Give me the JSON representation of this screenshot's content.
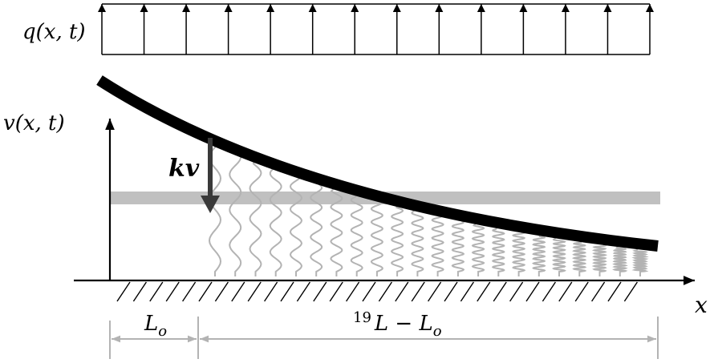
{
  "labels": {
    "load": "q(x, t)",
    "deflection": "v(x, t)",
    "spring_force": "kv",
    "x_axis": "x",
    "length_left": "L",
    "length_left_sub": "o",
    "length_right_sup": "19",
    "length_right_main": "L − L",
    "length_right_sub": "o"
  },
  "colors": {
    "beam": "#000000",
    "springs": "#b3b3b3",
    "reference_line": "#c0c0c0",
    "arrow": "#3a3a3a",
    "dimension": "#b3b3b3"
  },
  "load_arrow_count": 14,
  "spring_count": 22,
  "hatch_count": 32,
  "icons": {
    "load_arrows": "up-arrow-icon",
    "force_arrow": "down-arrow-icon"
  }
}
